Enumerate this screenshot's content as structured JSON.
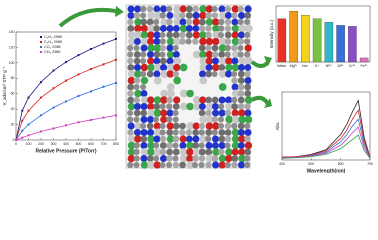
{
  "chart_data": [
    {
      "type": "line",
      "x_label": "Relative Pressure (P/Torr)",
      "y_label": "V_ads/cm³ STP g⁻¹",
      "x": [
        0,
        50,
        100,
        200,
        300,
        400,
        500,
        600,
        700,
        800
      ],
      "xlim": [
        0,
        800
      ],
      "xticks": [
        0,
        100,
        200,
        300,
        400,
        500,
        600,
        700,
        800
      ],
      "ylim": [
        0,
        140
      ],
      "yticks": [
        0,
        20,
        40,
        60,
        80,
        100,
        120,
        140
      ],
      "series": [
        {
          "name": "C₂H₂ 298K",
          "color": "#1a1a80",
          "values": [
            0,
            38,
            55,
            75,
            90,
            101,
            110,
            118,
            125,
            131
          ]
        },
        {
          "name": "C₂H₄ 298K",
          "color": "#d62020",
          "values": [
            0,
            25,
            38,
            55,
            67,
            77,
            85,
            92,
            98,
            104
          ]
        },
        {
          "name": "CO₂ 298K",
          "color": "#2f6fd8",
          "values": [
            0,
            12,
            20,
            32,
            42,
            50,
            57,
            63,
            69,
            74
          ]
        },
        {
          "name": "CH₄ 298K",
          "color": "#d040c0",
          "values": [
            0,
            3,
            6,
            11,
            15,
            19,
            23,
            26,
            29,
            32
          ]
        }
      ]
    },
    {
      "type": "bar",
      "y_label": "Intensity (a.u.)",
      "categories": [
        "Water",
        "Mg²⁺",
        "Na⁺",
        "K⁺",
        "Ni²⁺",
        "Al³⁺",
        "Cr³⁺",
        "Fe³⁺"
      ],
      "values": [
        85,
        100,
        92,
        85,
        78,
        72,
        70,
        8
      ],
      "colors": [
        "#e8322a",
        "#f39a1e",
        "#f5d21a",
        "#7cc242",
        "#2fb8c8",
        "#3b6fd8",
        "#8a4fc8",
        "#e070c0"
      ],
      "ylim": [
        0,
        110
      ]
    },
    {
      "type": "line",
      "x_label": "Wavelength(nm)",
      "y_label": "Abs.",
      "x": [
        400,
        450,
        500,
        550,
        600,
        620,
        640,
        660,
        680,
        700
      ],
      "xlim": [
        400,
        700
      ],
      "xticks": [
        400,
        500,
        600,
        700
      ],
      "ylim": [
        0,
        1.2
      ],
      "series": [
        {
          "color": "#222222",
          "values": [
            0.05,
            0.06,
            0.1,
            0.18,
            0.45,
            0.62,
            0.85,
            1.05,
            0.4,
            0.05
          ]
        },
        {
          "color": "#d62020",
          "values": [
            0.05,
            0.06,
            0.09,
            0.16,
            0.38,
            0.52,
            0.72,
            0.88,
            0.34,
            0.05
          ]
        },
        {
          "color": "#2f6fd8",
          "values": [
            0.04,
            0.05,
            0.08,
            0.14,
            0.32,
            0.44,
            0.6,
            0.72,
            0.28,
            0.04
          ]
        },
        {
          "color": "#d040c0",
          "values": [
            0.04,
            0.05,
            0.07,
            0.12,
            0.26,
            0.36,
            0.48,
            0.58,
            0.22,
            0.04
          ]
        },
        {
          "color": "#2aa040",
          "values": [
            0.03,
            0.04,
            0.06,
            0.1,
            0.2,
            0.28,
            0.36,
            0.44,
            0.17,
            0.03
          ]
        }
      ]
    }
  ]
}
